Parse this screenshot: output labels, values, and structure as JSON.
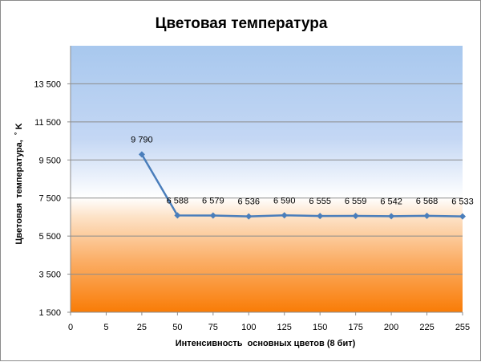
{
  "chart_data": {
    "type": "line",
    "title": "Цветовая температура",
    "xlabel": "Интенсивность  основных цветов (8 бит)",
    "ylabel": "Цветовая  температура,  ˚ K",
    "x_ticks": [
      0,
      5,
      25,
      50,
      75,
      100,
      125,
      150,
      175,
      200,
      225,
      255
    ],
    "y_ticks": [
      "1 500",
      "3 500",
      "5 500",
      "7 500",
      "9 500",
      "11 500",
      "13 500"
    ],
    "y_tick_values": [
      1500,
      3500,
      5500,
      7500,
      9500,
      11500,
      13500
    ],
    "ylim": [
      1500,
      15500
    ],
    "grid": "horizontal",
    "legend": "none",
    "background": "gradient: blue at top, white near 7 000 K, orange at bottom",
    "series": [
      {
        "x": [
          25,
          50,
          75,
          100,
          125,
          150,
          175,
          200,
          225,
          255
        ],
        "values": [
          9790,
          6588,
          6579,
          6536,
          6590,
          6555,
          6559,
          6542,
          6568,
          6533
        ],
        "labels": [
          "9 790",
          "6 588",
          "6 579",
          "6 536",
          "6 590",
          "6 555",
          "6 559",
          "6 542",
          "6 568",
          "6 533"
        ],
        "color": "#4a7ebb"
      }
    ]
  }
}
